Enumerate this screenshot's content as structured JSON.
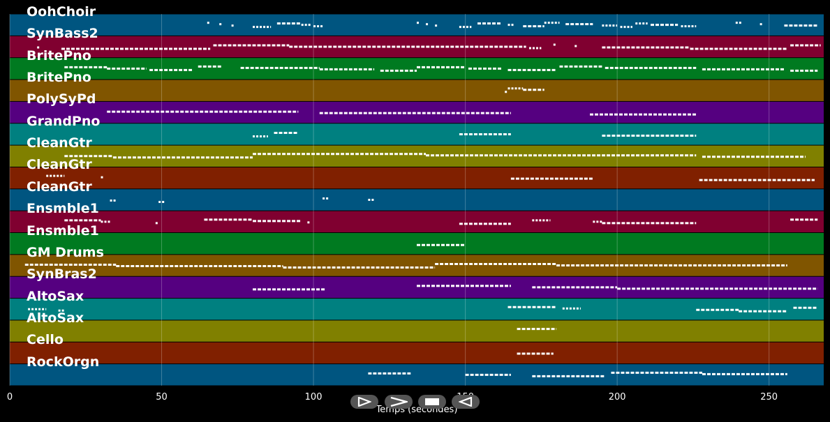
{
  "app": {
    "x_axis_title": "Temps (secondes)",
    "x_ticks": [
      "0",
      "50",
      "100",
      "150",
      "200",
      "250"
    ]
  },
  "tracks": [
    {
      "name": "OohChoir",
      "color": "#005580"
    },
    {
      "name": "SynBass2",
      "color": "#800030"
    },
    {
      "name": "BritePno",
      "color": "#007a20"
    },
    {
      "name": "BritePno",
      "color": "#805500"
    },
    {
      "name": "PolySyPd",
      "color": "#550080"
    },
    {
      "name": "GrandPno",
      "color": "#008080"
    },
    {
      "name": "CleanGtr",
      "color": "#808000"
    },
    {
      "name": "CleanGtr",
      "color": "#802000"
    },
    {
      "name": "CleanGtr",
      "color": "#005580"
    },
    {
      "name": "Ensmble1",
      "color": "#800030"
    },
    {
      "name": "Ensmble1",
      "color": "#007a20"
    },
    {
      "name": "GM Drums",
      "color": "#805500"
    },
    {
      "name": "SynBras2",
      "color": "#550080"
    },
    {
      "name": "AltoSax",
      "color": "#008080"
    },
    {
      "name": "AltoSax",
      "color": "#808000"
    },
    {
      "name": "Cello",
      "color": "#802000"
    },
    {
      "name": "RockOrgn",
      "color": "#005580"
    }
  ],
  "time_range": [
    0,
    268
  ],
  "notes": [
    {
      "t": 0,
      "segs": [
        [
          65,
          66
        ],
        [
          69,
          70
        ],
        [
          73,
          74
        ],
        [
          80,
          86
        ],
        [
          88,
          96
        ],
        [
          96,
          99
        ],
        [
          100,
          103
        ],
        [
          134,
          135
        ],
        [
          137,
          138
        ],
        [
          140,
          141
        ],
        [
          148,
          152
        ],
        [
          154,
          162
        ],
        [
          164,
          166
        ],
        [
          169,
          176
        ],
        [
          176,
          181
        ],
        [
          183,
          192
        ],
        [
          195,
          200
        ],
        [
          201,
          205
        ],
        [
          206,
          210
        ],
        [
          211,
          220
        ],
        [
          221,
          226
        ],
        [
          239,
          241
        ],
        [
          247,
          248
        ],
        [
          255,
          266
        ]
      ]
    },
    {
      "t": 1,
      "segs": [
        [
          9,
          10
        ],
        [
          17,
          66
        ],
        [
          67,
          92
        ],
        [
          92,
          170
        ],
        [
          171,
          175
        ],
        [
          179,
          180
        ],
        [
          186,
          187
        ],
        [
          195,
          224
        ],
        [
          224,
          256
        ],
        [
          257,
          267
        ]
      ]
    },
    {
      "t": 2,
      "segs": [
        [
          18,
          32
        ],
        [
          32,
          45
        ],
        [
          46,
          60
        ],
        [
          62,
          70
        ],
        [
          76,
          102
        ],
        [
          102,
          120
        ],
        [
          122,
          134
        ],
        [
          134,
          150
        ],
        [
          151,
          162
        ],
        [
          164,
          180
        ],
        [
          181,
          195
        ],
        [
          196,
          226
        ],
        [
          228,
          255
        ],
        [
          257,
          266
        ]
      ]
    },
    {
      "t": 3,
      "segs": [
        [
          163,
          164
        ],
        [
          164,
          169
        ],
        [
          169,
          176
        ]
      ]
    },
    {
      "t": 4,
      "segs": [
        [
          32,
          95
        ],
        [
          102,
          165
        ],
        [
          191,
          226
        ]
      ]
    },
    {
      "t": 5,
      "segs": [
        [
          80,
          85
        ],
        [
          87,
          95
        ],
        [
          148,
          165
        ],
        [
          195,
          226
        ]
      ]
    },
    {
      "t": 6,
      "segs": [
        [
          18,
          34
        ],
        [
          34,
          80
        ],
        [
          80,
          137
        ],
        [
          137,
          226
        ],
        [
          228,
          262
        ]
      ]
    },
    {
      "t": 7,
      "segs": [
        [
          12,
          18
        ],
        [
          30,
          31
        ],
        [
          165,
          192
        ],
        [
          227,
          265
        ]
      ]
    },
    {
      "t": 8,
      "segs": [
        [
          33,
          35
        ],
        [
          49,
          51
        ],
        [
          103,
          105
        ],
        [
          118,
          120
        ]
      ]
    },
    {
      "t": 9,
      "segs": [
        [
          18,
          30
        ],
        [
          30,
          33
        ],
        [
          48,
          49
        ],
        [
          64,
          80
        ],
        [
          80,
          96
        ],
        [
          98,
          99
        ],
        [
          148,
          165
        ],
        [
          172,
          178
        ],
        [
          192,
          195
        ],
        [
          195,
          226
        ],
        [
          257,
          266
        ]
      ]
    },
    {
      "t": 10,
      "segs": [
        [
          134,
          150
        ]
      ]
    },
    {
      "t": 11,
      "segs": [
        [
          5,
          35
        ],
        [
          35,
          90
        ],
        [
          90,
          140
        ],
        [
          140,
          180
        ],
        [
          180,
          256
        ]
      ]
    },
    {
      "t": 12,
      "segs": [
        [
          80,
          104
        ],
        [
          134,
          165
        ],
        [
          172,
          200
        ],
        [
          200,
          266
        ]
      ]
    },
    {
      "t": 13,
      "segs": [
        [
          6,
          12
        ],
        [
          16,
          18
        ],
        [
          164,
          180
        ],
        [
          182,
          188
        ],
        [
          226,
          240
        ],
        [
          240,
          256
        ],
        [
          258,
          266
        ]
      ]
    },
    {
      "t": 14,
      "segs": [
        [
          167,
          180
        ]
      ]
    },
    {
      "t": 15,
      "segs": [
        [
          167,
          179
        ]
      ]
    },
    {
      "t": 16,
      "segs": [
        [
          118,
          132
        ],
        [
          150,
          165
        ],
        [
          172,
          196
        ],
        [
          198,
          228
        ],
        [
          228,
          256
        ]
      ]
    }
  ]
}
